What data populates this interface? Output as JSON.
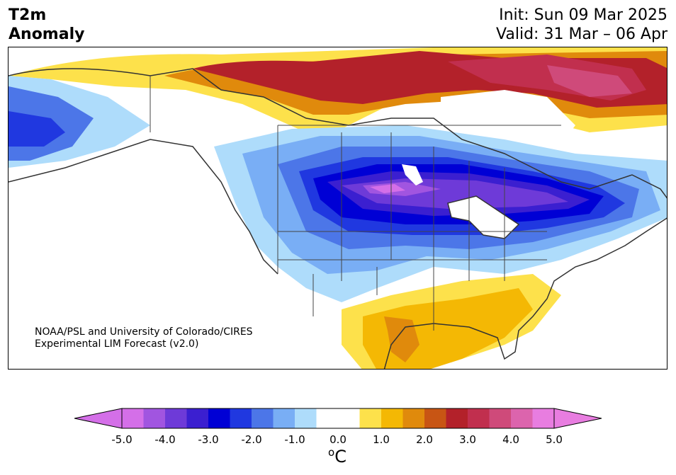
{
  "title": {
    "line1": "T2m",
    "line2": "Anomaly"
  },
  "init_text": "Init: Sun 09 Mar 2025",
  "valid_text": "Valid: 31 Mar – 06 Apr",
  "credit": {
    "line1": "NOAA/PSL and University of Colorado/CIRES",
    "line2": "Experimental LIM Forecast (v2.0)"
  },
  "colorbar": {
    "tick_labels": [
      "-5.0",
      "-4.0",
      "-3.0",
      "-2.0",
      "-1.0",
      "0.0",
      "1.0",
      "2.0",
      "3.0",
      "4.0",
      "5.0"
    ],
    "colors": [
      "#d46fe8",
      "#a155e0",
      "#6e3ad8",
      "#3b1fd0",
      "#0000d5",
      "#2038e0",
      "#4c76e8",
      "#79aef5",
      "#aedcfb",
      "#ffffff",
      "#ffffff",
      "#fde14b",
      "#f4b804",
      "#e08a0c",
      "#c85514",
      "#b3212a",
      "#c12f4e",
      "#cf4a7a",
      "#dc64ad",
      "#e87de0"
    ],
    "extend_min_color": "#d46fe8",
    "extend_max_color": "#e87de0",
    "units_base": "C",
    "units_sup": "o"
  }
}
